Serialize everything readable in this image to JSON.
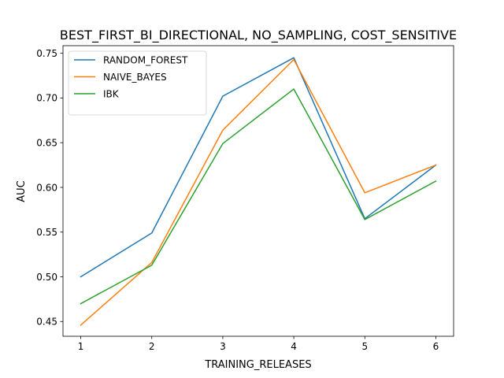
{
  "chart_data": {
    "type": "line",
    "title": "BEST_FIRST_BI_DIRECTIONAL, NO_SAMPLING, COST_SENSITIVE",
    "xlabel": "TRAINING_RELEASES",
    "ylabel": "AUC",
    "x": [
      1,
      2,
      3,
      4,
      5,
      6
    ],
    "xticks": [
      "1",
      "2",
      "3",
      "4",
      "5",
      "6"
    ],
    "yticks": [
      "0.45",
      "0.50",
      "0.55",
      "0.60",
      "0.65",
      "0.70",
      "0.75"
    ],
    "ylim": [
      0.4335,
      0.7585
    ],
    "xlim": [
      0.75,
      6.25
    ],
    "grid": false,
    "legend_position": "upper-left",
    "series": [
      {
        "name": "RANDOM_FOREST",
        "color": "#1f77b4",
        "values": [
          0.5,
          0.549,
          0.702,
          0.745,
          0.565,
          0.625
        ]
      },
      {
        "name": "NAIVE_BAYES",
        "color": "#ff7f0e",
        "values": [
          0.446,
          0.516,
          0.664,
          0.743,
          0.594,
          0.625
        ]
      },
      {
        "name": "IBK",
        "color": "#2ca02c",
        "values": [
          0.47,
          0.513,
          0.649,
          0.71,
          0.564,
          0.607
        ]
      }
    ]
  }
}
